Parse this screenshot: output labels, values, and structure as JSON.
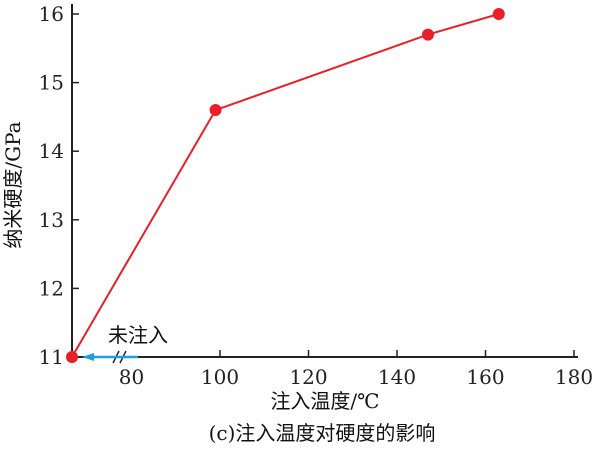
{
  "chart_data": {
    "type": "line",
    "title": "",
    "caption": "(c)注入温度对硬度的影响",
    "xlabel": "注入温度/℃",
    "ylabel": "纳米硬度/GPa",
    "xlim": [
      66.5,
      180
    ],
    "ylim": [
      11,
      16
    ],
    "xticks": [
      80,
      100,
      120,
      140,
      160,
      180
    ],
    "yticks": [
      11,
      12,
      13,
      14,
      15,
      16
    ],
    "axis_break": true,
    "annotation": "未注入",
    "color": "#e8202a",
    "annotation_arrow_color": "#1aa0e0",
    "points": [
      {
        "label": "未注入",
        "x": null,
        "y": 11.0
      },
      {
        "x": 99,
        "y": 14.6
      },
      {
        "x": 147,
        "y": 15.7
      },
      {
        "x": 163,
        "y": 16.0
      }
    ]
  }
}
